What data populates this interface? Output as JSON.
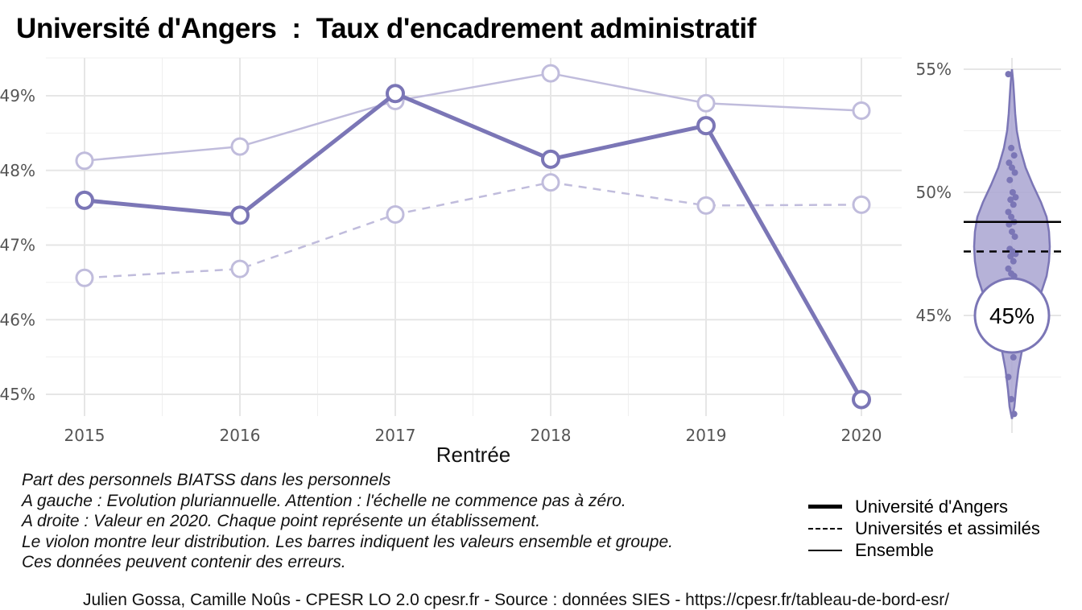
{
  "chart_data": [
    {
      "type": "line",
      "title": "Université d'Angers  :  Taux d'encadrement administratif",
      "xlabel": "Rentrée",
      "ylabel": "",
      "x": [
        "2015",
        "2016",
        "2017",
        "2018",
        "2019",
        "2020"
      ],
      "ylim": [
        44.7,
        49.5
      ],
      "yticks": [
        "45%",
        "46%",
        "47%",
        "48%",
        "49%"
      ],
      "series": [
        {
          "name": "Université d'Angers",
          "style": "thick",
          "values": [
            47.6,
            47.4,
            49.03,
            48.15,
            48.6,
            44.93
          ]
        },
        {
          "name": "Ensemble",
          "style": "solid",
          "values": [
            48.13,
            48.32,
            48.93,
            49.3,
            48.9,
            48.8
          ]
        },
        {
          "name": "Universités et assimilés",
          "style": "dashed",
          "values": [
            46.56,
            46.68,
            47.41,
            47.84,
            47.53,
            47.54
          ]
        }
      ]
    },
    {
      "type": "violin",
      "ylim": [
        40.5,
        56
      ],
      "yticks": [
        "45%",
        "50%",
        "55%"
      ],
      "highlight_value": 45,
      "highlight_label": "45%",
      "ensemble_line": 48.8,
      "group_line": 47.6,
      "points": [
        54.8,
        51.8,
        51.5,
        51.2,
        51.0,
        50.8,
        50.5,
        50.0,
        49.8,
        49.7,
        49.5,
        49.2,
        49.0,
        48.8,
        48.7,
        48.4,
        48.2,
        47.7,
        47.6,
        47.5,
        47.4,
        47.2,
        46.9,
        46.7,
        46.6,
        46.3,
        46.0,
        45.6,
        45.2,
        44.8,
        44.4,
        43.8,
        43.3,
        42.5,
        41.6,
        41.0
      ]
    }
  ],
  "colors": {
    "main": "#7b76b6",
    "light": "#c0bcdc",
    "violin_fill": "#a9a5d1",
    "grid": "#e6e6e6"
  },
  "caption": [
    "Part des personnels BIATSS dans les personnels",
    "A gauche : Evolution pluriannuelle. Attention : l'échelle ne commence pas à zéro.",
    "A droite : Valeur en 2020. Chaque point représente un établissement.",
    "Le violon montre leur distribution. Les barres indiquent les valeurs ensemble et groupe.",
    "Ces données peuvent contenir des erreurs."
  ],
  "legend": [
    {
      "label": "Université d'Angers",
      "style": "thick"
    },
    {
      "label": "Universités et assimilés",
      "style": "dashed"
    },
    {
      "label": "Ensemble",
      "style": "solid"
    }
  ],
  "source": "Julien Gossa, Camille Noûs - CPESR LO 2.0 cpesr.fr - Source : données SIES - https://cpesr.fr/tableau-de-bord-esr/"
}
